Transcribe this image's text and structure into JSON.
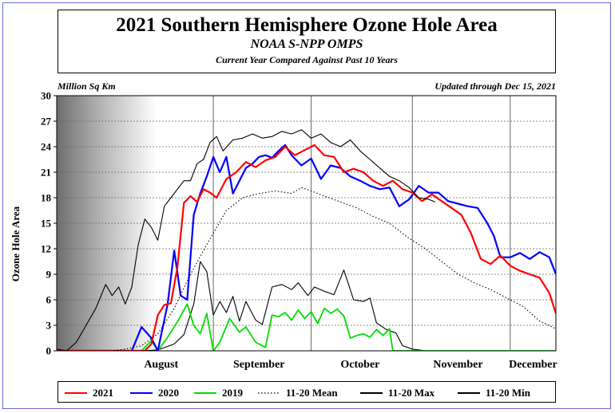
{
  "chart_data": {
    "type": "line",
    "title": "2021 Southern Hemisphere Ozone Hole Area",
    "subtitle": "NOAA S-NPP OMPS",
    "caption": "Current Year Compared Against Past 10 Years",
    "ylabel": "Ozone Hole Area",
    "yunit": "Million Sq Km",
    "updated": "Updated through Dec 15, 2021",
    "ylim": [
      0,
      30
    ],
    "yticks": [
      "0",
      "3",
      "6",
      "9",
      "12",
      "15",
      "18",
      "21",
      "24",
      "27",
      "30"
    ],
    "xlim": [
      "2021-07-15",
      "2021-12-15"
    ],
    "months": [
      {
        "label": "August",
        "start": "2021-08-01",
        "center": "2021-08-16"
      },
      {
        "label": "September",
        "start": "2021-09-01",
        "center": "2021-09-15"
      },
      {
        "label": "October",
        "start": "2021-10-01",
        "center": "2021-10-16"
      },
      {
        "label": "November",
        "start": "2021-11-01",
        "center": "2021-11-15"
      },
      {
        "label": "December",
        "start": "2021-12-01",
        "center": "2021-12-08"
      }
    ],
    "grid": true,
    "legend_position": "bottom",
    "series": [
      {
        "name": "11-20 Min",
        "color": "#000000",
        "style": "solid",
        "x": [
          "2021-07-15",
          "2021-08-10",
          "2021-08-15",
          "2021-08-20",
          "2021-08-23",
          "2021-08-26",
          "2021-08-28",
          "2021-08-30",
          "2021-09-01",
          "2021-09-03",
          "2021-09-05",
          "2021-09-07",
          "2021-09-09",
          "2021-09-11",
          "2021-09-14",
          "2021-09-16",
          "2021-09-19",
          "2021-09-22",
          "2021-09-25",
          "2021-09-27",
          "2021-09-30",
          "2021-10-02",
          "2021-10-05",
          "2021-10-08",
          "2021-10-11",
          "2021-10-14",
          "2021-10-17",
          "2021-10-19",
          "2021-10-21",
          "2021-10-24",
          "2021-10-27",
          "2021-10-29",
          "2021-11-01",
          "2021-11-05",
          "2021-12-15"
        ],
        "y": [
          0,
          0,
          0.1,
          0.8,
          1.9,
          5.5,
          10.5,
          9.3,
          4.2,
          5.8,
          4.5,
          6.4,
          3.5,
          5.8,
          3.6,
          3.1,
          7.5,
          7.8,
          7.2,
          8.0,
          6.5,
          7.5,
          7.0,
          6.6,
          9.5,
          6.0,
          5.8,
          6.2,
          3.3,
          2.5,
          2.1,
          0.6,
          0.2,
          0,
          0
        ]
      },
      {
        "name": "2019",
        "color": "#00dd00",
        "style": "solid",
        "x": [
          "2021-07-15",
          "2021-08-10",
          "2021-08-13",
          "2021-08-15",
          "2021-08-18",
          "2021-08-21",
          "2021-08-24",
          "2021-08-26",
          "2021-08-28",
          "2021-08-30",
          "2021-09-01",
          "2021-09-03",
          "2021-09-06",
          "2021-09-09",
          "2021-09-11",
          "2021-09-14",
          "2021-09-17",
          "2021-09-19",
          "2021-09-21",
          "2021-09-23",
          "2021-09-25",
          "2021-09-27",
          "2021-09-29",
          "2021-10-01",
          "2021-10-03",
          "2021-10-05",
          "2021-10-07",
          "2021-10-09",
          "2021-10-11",
          "2021-10-13",
          "2021-10-15",
          "2021-10-17",
          "2021-10-19",
          "2021-10-21",
          "2021-10-23",
          "2021-10-25",
          "2021-10-26",
          "2021-12-15"
        ],
        "y": [
          0,
          0,
          1.2,
          0,
          1.6,
          3.4,
          5.5,
          3.0,
          2.0,
          4.4,
          0,
          1.0,
          3.8,
          2.2,
          2.8,
          1.0,
          0.4,
          4.2,
          4.0,
          4.5,
          3.6,
          4.8,
          3.8,
          4.6,
          3.2,
          5.0,
          4.4,
          4.9,
          4.1,
          1.5,
          1.8,
          2.0,
          1.6,
          2.5,
          1.8,
          2.6,
          0,
          0
        ]
      },
      {
        "name": "2020",
        "color": "#0000ff",
        "style": "solid",
        "x": [
          "2021-07-15",
          "2021-08-07",
          "2021-08-10",
          "2021-08-13",
          "2021-08-15",
          "2021-08-18",
          "2021-08-20",
          "2021-08-22",
          "2021-08-24",
          "2021-08-26",
          "2021-08-28",
          "2021-08-30",
          "2021-09-01",
          "2021-09-03",
          "2021-09-05",
          "2021-09-07",
          "2021-09-09",
          "2021-09-11",
          "2021-09-13",
          "2021-09-15",
          "2021-09-17",
          "2021-09-19",
          "2021-09-21",
          "2021-09-23",
          "2021-09-25",
          "2021-09-28",
          "2021-10-01",
          "2021-10-04",
          "2021-10-07",
          "2021-10-10",
          "2021-10-13",
          "2021-10-16",
          "2021-10-19",
          "2021-10-22",
          "2021-10-25",
          "2021-10-28",
          "2021-10-31",
          "2021-11-03",
          "2021-11-06",
          "2021-11-09",
          "2021-11-12",
          "2021-11-15",
          "2021-11-18",
          "2021-11-21",
          "2021-11-24",
          "2021-11-26",
          "2021-11-28",
          "2021-12-01",
          "2021-12-04",
          "2021-12-07",
          "2021-12-10",
          "2021-12-13",
          "2021-12-15"
        ],
        "y": [
          0,
          0,
          2.8,
          1.5,
          0,
          5.5,
          11.8,
          6.5,
          6.0,
          16.0,
          18.5,
          20.5,
          22.8,
          21.0,
          22.8,
          18.5,
          20.0,
          21.5,
          22.0,
          22.8,
          23.0,
          22.7,
          23.5,
          24.2,
          23.0,
          21.8,
          22.6,
          20.2,
          21.8,
          21.5,
          20.5,
          20.0,
          19.4,
          19.0,
          19.2,
          17.0,
          17.8,
          19.4,
          18.6,
          18.6,
          17.6,
          17.3,
          17.0,
          16.8,
          15.0,
          13.5,
          11.0,
          11.0,
          11.5,
          10.8,
          11.6,
          11.0,
          9.0
        ]
      },
      {
        "name": "2021",
        "color": "#ff0000",
        "style": "solid",
        "x": [
          "2021-07-15",
          "2021-08-11",
          "2021-08-13",
          "2021-08-15",
          "2021-08-17",
          "2021-08-19",
          "2021-08-21",
          "2021-08-23",
          "2021-08-25",
          "2021-08-27",
          "2021-08-29",
          "2021-08-31",
          "2021-09-02",
          "2021-09-05",
          "2021-09-08",
          "2021-09-11",
          "2021-09-14",
          "2021-09-17",
          "2021-09-20",
          "2021-09-23",
          "2021-09-26",
          "2021-09-29",
          "2021-10-02",
          "2021-10-05",
          "2021-10-08",
          "2021-10-11",
          "2021-10-14",
          "2021-10-17",
          "2021-10-20",
          "2021-10-23",
          "2021-10-26",
          "2021-10-29",
          "2021-11-01",
          "2021-11-04",
          "2021-11-07",
          "2021-11-10",
          "2021-11-13",
          "2021-11-16",
          "2021-11-19",
          "2021-11-22",
          "2021-11-25",
          "2021-11-28",
          "2021-12-01",
          "2021-12-04",
          "2021-12-07",
          "2021-12-10",
          "2021-12-13",
          "2021-12-15"
        ],
        "y": [
          0,
          0,
          0.8,
          4.2,
          5.4,
          5.6,
          9.8,
          17.4,
          18.2,
          17.5,
          19.0,
          18.6,
          18.0,
          20.2,
          21.0,
          22.2,
          21.6,
          22.4,
          22.8,
          24.0,
          23.0,
          23.6,
          24.2,
          23.0,
          22.8,
          21.0,
          21.4,
          21.0,
          20.0,
          19.4,
          20.0,
          19.0,
          18.6,
          17.6,
          18.4,
          17.6,
          16.8,
          16.0,
          13.8,
          10.8,
          10.2,
          11.2,
          10.0,
          9.4,
          9.0,
          8.6,
          6.8,
          4.4
        ]
      },
      {
        "name": "11-20 Max",
        "color": "#000000",
        "style": "solid",
        "x": [
          "2021-07-15",
          "2021-07-18",
          "2021-07-21",
          "2021-07-24",
          "2021-07-27",
          "2021-07-30",
          "2021-08-01",
          "2021-08-03",
          "2021-08-05",
          "2021-08-07",
          "2021-08-09",
          "2021-08-11",
          "2021-08-13",
          "2021-08-15",
          "2021-08-17",
          "2021-08-19",
          "2021-08-21",
          "2021-08-23",
          "2021-08-25",
          "2021-08-27",
          "2021-08-29",
          "2021-08-31",
          "2021-09-02",
          "2021-09-04",
          "2021-09-07",
          "2021-09-10",
          "2021-09-13",
          "2021-09-16",
          "2021-09-19",
          "2021-09-22",
          "2021-09-25",
          "2021-09-28",
          "2021-10-01",
          "2021-10-04",
          "2021-10-07",
          "2021-10-10",
          "2021-10-13",
          "2021-10-16",
          "2021-10-19",
          "2021-10-22",
          "2021-10-25",
          "2021-10-28",
          "2021-10-31",
          "2021-11-03",
          "2021-11-06",
          "2021-11-08"
        ],
        "y": [
          0.2,
          0,
          1.0,
          3.0,
          5.0,
          7.8,
          6.5,
          7.5,
          5.5,
          7.5,
          12.5,
          15.5,
          14.5,
          13.0,
          17.0,
          18.0,
          19.0,
          20.0,
          20.0,
          22.0,
          22.5,
          24.5,
          25.2,
          23.5,
          24.8,
          25.0,
          25.5,
          25.0,
          25.2,
          25.8,
          25.5,
          26.0,
          25.0,
          25.5,
          24.5,
          24.0,
          24.8,
          23.5,
          22.5,
          21.5,
          20.5,
          20.0,
          19.2,
          18.0,
          17.8,
          17.5
        ]
      },
      {
        "name": "11-20 Mean",
        "color": "#000000",
        "style": "dotted",
        "x": [
          "2021-07-15",
          "2021-08-01",
          "2021-08-05",
          "2021-08-10",
          "2021-08-15",
          "2021-08-20",
          "2021-08-25",
          "2021-08-30",
          "2021-09-05",
          "2021-09-10",
          "2021-09-15",
          "2021-09-20",
          "2021-09-25",
          "2021-09-28",
          "2021-10-01",
          "2021-10-05",
          "2021-10-10",
          "2021-10-15",
          "2021-10-20",
          "2021-10-25",
          "2021-10-30",
          "2021-11-05",
          "2021-11-10",
          "2021-11-15",
          "2021-11-20",
          "2021-11-25",
          "2021-11-30",
          "2021-12-05",
          "2021-12-10",
          "2021-12-15"
        ],
        "y": [
          0,
          0,
          0.2,
          0.6,
          2.0,
          5.0,
          9.0,
          12.5,
          16.5,
          18.0,
          18.5,
          18.8,
          18.5,
          19.2,
          18.8,
          18.2,
          17.5,
          16.8,
          15.8,
          15.0,
          13.5,
          12.0,
          10.5,
          9.0,
          8.0,
          7.2,
          6.2,
          5.2,
          3.5,
          2.6
        ]
      }
    ],
    "legend": [
      {
        "name": "2021",
        "color": "#ff0000",
        "style": "solid"
      },
      {
        "name": "2020",
        "color": "#0000ff",
        "style": "solid"
      },
      {
        "name": "2019",
        "color": "#00dd00",
        "style": "solid"
      },
      {
        "name": "11-20 Mean",
        "color": "#000000",
        "style": "dotted"
      },
      {
        "name": "11-20 Max",
        "color": "#000000",
        "style": "solid"
      },
      {
        "name": "11-20 Min",
        "color": "#000000",
        "style": "solid"
      }
    ]
  }
}
